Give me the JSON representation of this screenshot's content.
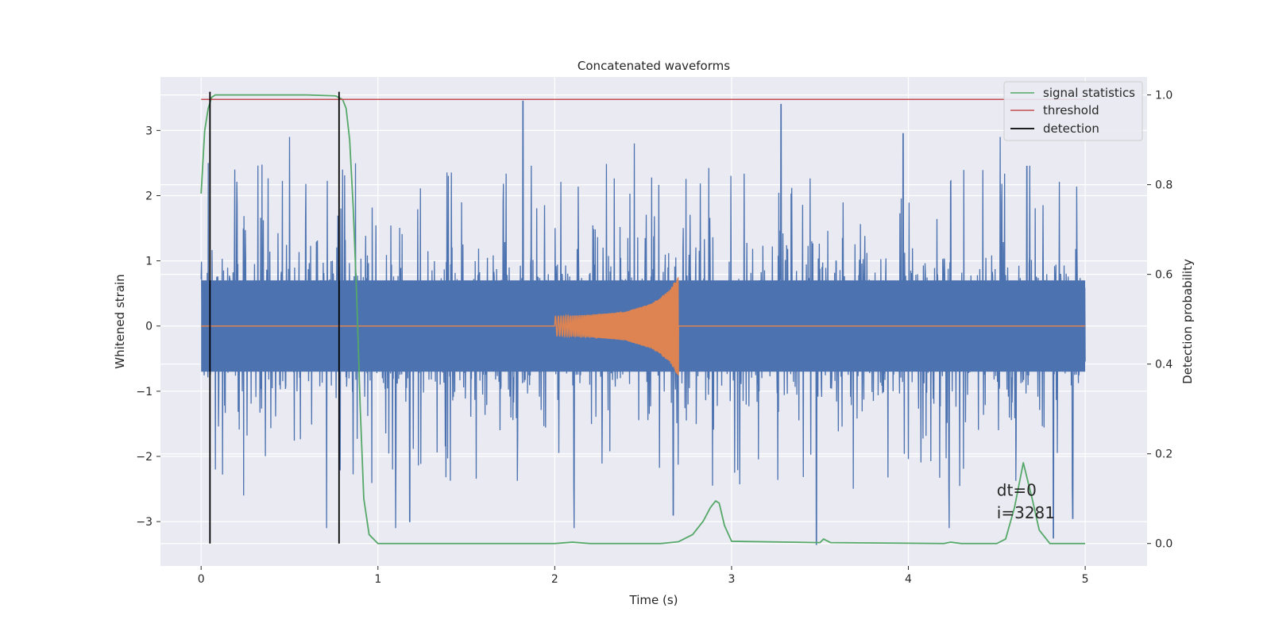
{
  "chart_data": {
    "type": "line",
    "title": "Concatenated waveforms",
    "xlabel": "Time (s)",
    "ylabel_left": "Whitened strain",
    "ylabel_right": "Detection probability",
    "xlim": [
      -0.23,
      5.35
    ],
    "ylim_left": [
      -3.68,
      3.82
    ],
    "ylim_right": [
      -0.05,
      1.04
    ],
    "x_ticks": [
      0,
      1,
      2,
      3,
      4,
      5
    ],
    "x_tick_labels": [
      "0",
      "1",
      "2",
      "3",
      "4",
      "5"
    ],
    "y_ticks_left": [
      3,
      2,
      1,
      0,
      -1,
      -2,
      -3
    ],
    "y_tick_labels_left": [
      "3",
      "2",
      "1",
      "0",
      "−1",
      "−2",
      "−3"
    ],
    "y_ticks_right": [
      1.0,
      0.8,
      0.6,
      0.4,
      0.2,
      0.0
    ],
    "y_tick_labels_right": [
      "1.0",
      "0.8",
      "0.6",
      "0.4",
      "0.2",
      "0.0"
    ],
    "grid": true,
    "legend_position": "top-right",
    "colors": {
      "background": "#eaeaf2",
      "grid": "#ffffff",
      "noise": "#4c72b0",
      "waveform": "#dd8452",
      "signal_statistics": "#55a868",
      "threshold": "#c44e52",
      "detection": "#000000"
    },
    "series": [
      {
        "name": "",
        "axis": "left",
        "kind": "noise",
        "x_range": [
          0,
          5
        ],
        "envelope_core": 0.7,
        "max_abs": 3.5,
        "peaks": [
          [
            0.04,
            2.5
          ],
          [
            0.08,
            -2.2
          ],
          [
            0.19,
            2.4
          ],
          [
            0.24,
            -2.6
          ],
          [
            0.5,
            2.9
          ],
          [
            0.71,
            -3.1
          ],
          [
            0.8,
            2.4
          ],
          [
            1.1,
            -3.1
          ],
          [
            1.18,
            -3.0
          ],
          [
            1.82,
            3.45
          ],
          [
            2.11,
            -3.1
          ],
          [
            2.45,
            2.8
          ],
          [
            2.67,
            -2.9
          ],
          [
            3.28,
            3.4
          ],
          [
            3.48,
            -3.35
          ],
          [
            3.97,
            2.95
          ],
          [
            4.23,
            -3.1
          ],
          [
            4.52,
            2.9
          ],
          [
            4.67,
            2.45
          ],
          [
            4.82,
            -3.25
          ],
          [
            4.93,
            -2.95
          ]
        ]
      },
      {
        "name": "",
        "axis": "left",
        "kind": "chirp",
        "x": [
          2.0,
          2.2,
          2.4,
          2.55,
          2.65,
          2.7
        ],
        "amplitude": [
          0.15,
          0.17,
          0.22,
          0.35,
          0.55,
          0.78
        ]
      },
      {
        "name": "signal statistics",
        "axis": "right",
        "x": [
          0,
          0.02,
          0.04,
          0.06,
          0.08,
          0.1,
          0.3,
          0.6,
          0.76,
          0.8,
          0.82,
          0.84,
          0.86,
          0.88,
          0.9,
          0.92,
          0.95,
          1.0,
          1.5,
          2.0,
          2.1,
          2.2,
          2.6,
          2.7,
          2.78,
          2.84,
          2.88,
          2.91,
          2.93,
          2.96,
          3.0,
          3.5,
          3.52,
          3.56,
          4.2,
          4.24,
          4.3,
          4.5,
          4.55,
          4.6,
          4.65,
          4.7,
          4.74,
          4.8,
          5.0
        ],
        "y": [
          0.78,
          0.92,
          0.97,
          0.995,
          1.0,
          1.0,
          1.0,
          1.0,
          0.998,
          0.99,
          0.97,
          0.9,
          0.75,
          0.55,
          0.3,
          0.1,
          0.02,
          0.0,
          0.0,
          0.0,
          0.003,
          0.0,
          0.0,
          0.004,
          0.02,
          0.05,
          0.08,
          0.095,
          0.09,
          0.04,
          0.005,
          0.002,
          0.01,
          0.002,
          0.0,
          0.003,
          0.0,
          0.0,
          0.01,
          0.08,
          0.18,
          0.1,
          0.03,
          0.0,
          0.0
        ]
      },
      {
        "name": "threshold",
        "axis": "right",
        "x": [
          0,
          5
        ],
        "y": [
          0.99,
          0.99
        ]
      },
      {
        "name": "detection",
        "axis": "right",
        "kind": "vertical_lines",
        "x": [
          0.05,
          0.78
        ],
        "y_range": [
          0.0,
          1.0
        ]
      }
    ],
    "annotations": [
      {
        "text": "dt=0",
        "x": 4.5,
        "y": -2.6
      },
      {
        "text": "i=3281",
        "x": 4.5,
        "y": -2.95
      }
    ]
  }
}
